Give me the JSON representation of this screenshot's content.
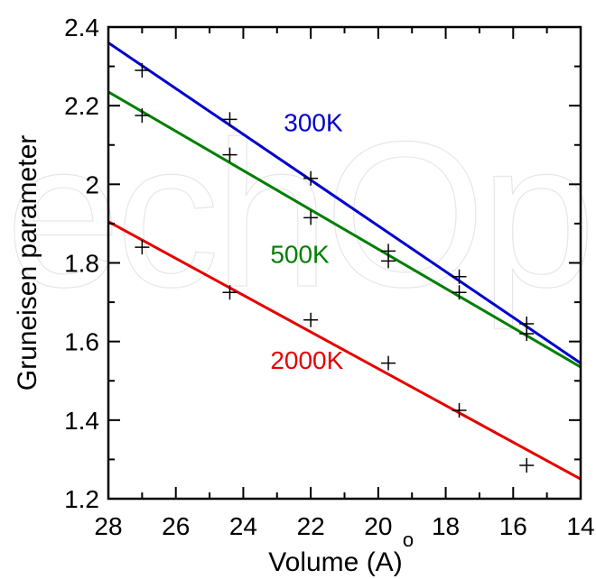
{
  "chart_data": {
    "type": "line",
    "title": "",
    "xlabel": "Volume (Å)",
    "xlabel_text": "Volume (A)",
    "xlabel_accent": "o",
    "ylabel": "Gruneisen parameter",
    "xlim": [
      28,
      14
    ],
    "ylim": [
      1.2,
      2.4
    ],
    "x_ticks": [
      28,
      26,
      24,
      22,
      20,
      18,
      16,
      14
    ],
    "y_ticks": [
      1.2,
      1.4,
      1.6,
      1.8,
      2.0,
      2.2,
      2.4
    ],
    "x_tick_labels": [
      "28",
      "26",
      "24",
      "22",
      "20",
      "18",
      "16",
      "14"
    ],
    "y_tick_labels": [
      "1.2",
      "1.4",
      "1.6",
      "1.8",
      "2",
      "2.2",
      "2.4"
    ],
    "grid": false,
    "legend": "inline labels",
    "series": [
      {
        "name": "300K",
        "color": "#0000cc",
        "fit_line": [
          [
            28,
            2.36
          ],
          [
            14,
            1.545
          ]
        ],
        "points": [
          [
            27.0,
            2.29
          ],
          [
            24.4,
            2.165
          ],
          [
            22.0,
            2.015
          ],
          [
            19.7,
            1.83
          ],
          [
            17.6,
            1.765
          ],
          [
            15.6,
            1.645
          ]
        ]
      },
      {
        "name": "500K",
        "color": "#007f00",
        "fit_line": [
          [
            28,
            2.235
          ],
          [
            14,
            1.535
          ]
        ],
        "points": [
          [
            27.0,
            2.175
          ],
          [
            24.4,
            2.075
          ],
          [
            22.0,
            1.915
          ],
          [
            19.7,
            1.805
          ],
          [
            17.6,
            1.725
          ],
          [
            15.6,
            1.62
          ]
        ]
      },
      {
        "name": "2000K",
        "color": "#e60000",
        "fit_line": [
          [
            28,
            1.905
          ],
          [
            14,
            1.25
          ]
        ],
        "points": [
          [
            27.0,
            1.84
          ],
          [
            24.4,
            1.725
          ],
          [
            22.0,
            1.655
          ],
          [
            19.7,
            1.545
          ],
          [
            17.6,
            1.425
          ],
          [
            15.6,
            1.285
          ]
        ]
      }
    ],
    "series_label_positions": [
      {
        "name": "300K",
        "x": 22.8,
        "y": 2.135
      },
      {
        "name": "500K",
        "x": 23.2,
        "y": 1.8
      },
      {
        "name": "2000K",
        "x": 23.2,
        "y": 1.53
      }
    ]
  },
  "watermark": "echOp"
}
